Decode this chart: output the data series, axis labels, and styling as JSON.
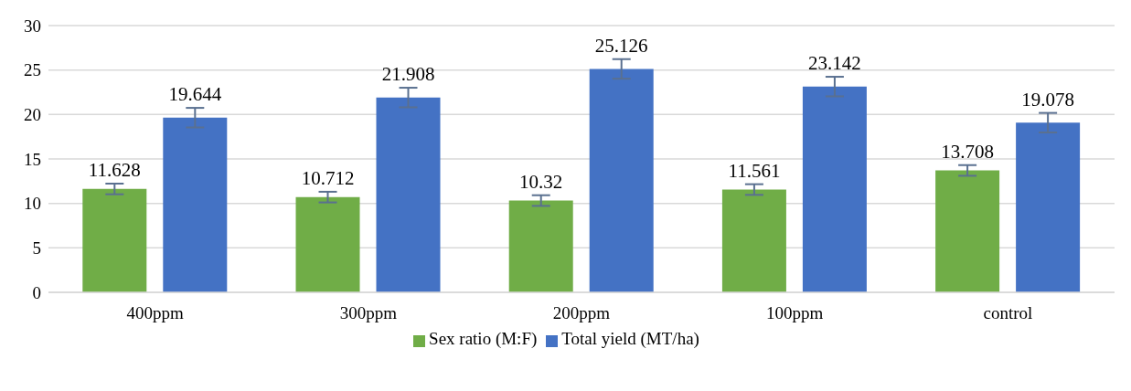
{
  "chart_data": {
    "type": "bar",
    "categories": [
      "400ppm",
      "300ppm",
      "200ppm",
      "100ppm",
      "control"
    ],
    "series": [
      {
        "name": "Sex ratio (M:F)",
        "color": "#70ad47",
        "values": [
          11.628,
          10.712,
          10.32,
          11.561,
          13.708
        ],
        "errors": [
          0.6,
          0.6,
          0.6,
          0.6,
          0.6
        ]
      },
      {
        "name": "Total yield (MT/ha)",
        "color": "#4472c4",
        "values": [
          19.644,
          21.908,
          25.126,
          23.142,
          19.078
        ],
        "errors": [
          1.1,
          1.1,
          1.1,
          1.1,
          1.1
        ]
      }
    ],
    "ylim": [
      0,
      30
    ],
    "yticks": [
      0,
      5,
      10,
      15,
      20,
      25,
      30
    ],
    "grid": "y",
    "legend": "bottom",
    "data_labels": true
  }
}
